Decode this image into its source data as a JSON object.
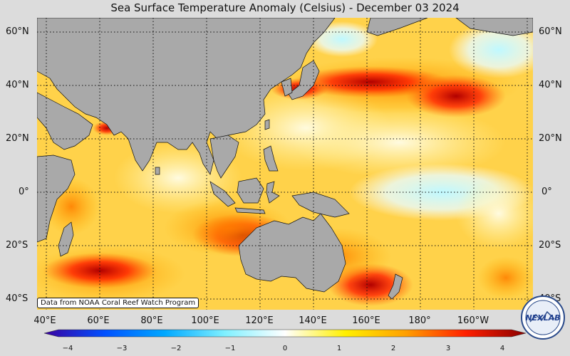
{
  "title": "Sea Surface Temperature Anomaly (Celsius) - December 03 2024",
  "credit": "Data from NOAA Coral Reef Watch Program",
  "lat_labels": [
    "60°N",
    "40°N",
    "20°N",
    "0°",
    "20°S",
    "40°S"
  ],
  "lon_labels": [
    "40°E",
    "60°E",
    "80°E",
    "100°E",
    "120°E",
    "140°E",
    "160°E",
    "180°",
    "160°W",
    "14"
  ],
  "colorbar": {
    "ticks": [
      "−4",
      "−3",
      "−2",
      "−1",
      "0",
      "1",
      "2",
      "3",
      "4"
    ],
    "colors": [
      "#3a00a0",
      "#0050ff",
      "#00a8ff",
      "#7ff0ff",
      "#ffffff",
      "#fff000",
      "#ffa000",
      "#ff2000",
      "#8a0000"
    ]
  },
  "logo_text": "NEXLAB",
  "colors": {
    "land": "#a9a9a9",
    "ocean_base": "#ffd24a",
    "background": "#dcdcdc"
  },
  "map_extent": {
    "lon": [
      "40°E",
      "140°W"
    ],
    "lat": [
      "40°S",
      "65°N"
    ]
  }
}
